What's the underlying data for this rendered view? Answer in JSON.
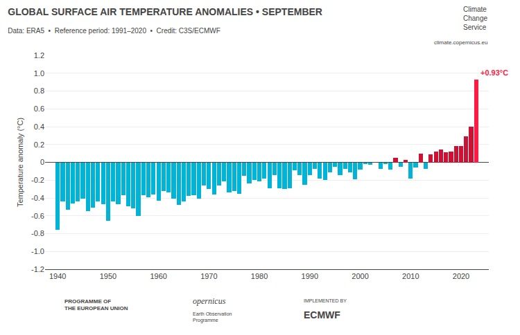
{
  "chart_data": {
    "type": "bar",
    "title": "GLOBAL SURFACE AIR TEMPERATURE ANOMALIES • SEPTEMBER",
    "subtitle": "Data: ERA5  •  Reference period: 1991–2020  •  Credit: C3S/ECMWF",
    "ylabel": "Temperature anomaly (°C)",
    "x": [
      1940,
      1941,
      1942,
      1943,
      1944,
      1945,
      1946,
      1947,
      1948,
      1949,
      1950,
      1951,
      1952,
      1953,
      1954,
      1955,
      1956,
      1957,
      1958,
      1959,
      1960,
      1961,
      1962,
      1963,
      1964,
      1965,
      1966,
      1967,
      1968,
      1969,
      1970,
      1971,
      1972,
      1973,
      1974,
      1975,
      1976,
      1977,
      1978,
      1979,
      1980,
      1981,
      1982,
      1983,
      1984,
      1985,
      1986,
      1987,
      1988,
      1989,
      1990,
      1991,
      1992,
      1993,
      1994,
      1995,
      1996,
      1997,
      1998,
      1999,
      2000,
      2001,
      2002,
      2003,
      2004,
      2005,
      2006,
      2007,
      2008,
      2009,
      2010,
      2011,
      2012,
      2013,
      2014,
      2015,
      2016,
      2017,
      2018,
      2019,
      2020,
      2021,
      2022,
      2023
    ],
    "values": [
      -0.76,
      -0.44,
      -0.53,
      -0.46,
      -0.44,
      -0.41,
      -0.55,
      -0.51,
      -0.44,
      -0.47,
      -0.66,
      -0.44,
      -0.47,
      -0.37,
      -0.49,
      -0.52,
      -0.6,
      -0.37,
      -0.39,
      -0.36,
      -0.43,
      -0.32,
      -0.34,
      -0.41,
      -0.48,
      -0.44,
      -0.38,
      -0.37,
      -0.41,
      -0.26,
      -0.3,
      -0.36,
      -0.26,
      -0.21,
      -0.34,
      -0.32,
      -0.35,
      -0.15,
      -0.24,
      -0.2,
      -0.21,
      -0.18,
      -0.29,
      -0.14,
      -0.29,
      -0.3,
      -0.29,
      -0.09,
      -0.14,
      -0.25,
      -0.14,
      -0.07,
      -0.18,
      -0.2,
      -0.11,
      -0.05,
      -0.14,
      -0.07,
      -0.11,
      -0.19,
      -0.08,
      -0.02,
      -0.03,
      0.0,
      -0.07,
      -0.02,
      -0.08,
      0.05,
      -0.05,
      0.03,
      -0.18,
      -0.06,
      0.1,
      -0.07,
      0.09,
      0.12,
      0.14,
      0.11,
      0.12,
      0.18,
      0.18,
      0.29,
      0.4,
      0.93
    ],
    "colors": [
      "#00b4d8",
      "#00b4d8",
      "#00b4d8",
      "#00b4d8",
      "#00b4d8",
      "#00b4d8",
      "#00b4d8",
      "#00b4d8",
      "#00b4d8",
      "#00b4d8",
      "#00b4d8",
      "#00b4d8",
      "#00b4d8",
      "#00b4d8",
      "#00b4d8",
      "#00b4d8",
      "#00b4d8",
      "#00b4d8",
      "#00b4d8",
      "#00b4d8",
      "#00b4d8",
      "#00b4d8",
      "#00b4d8",
      "#00b4d8",
      "#00b4d8",
      "#00b4d8",
      "#00b4d8",
      "#00b4d8",
      "#00b4d8",
      "#00b4d8",
      "#00b4d8",
      "#00b4d8",
      "#00b4d8",
      "#00b4d8",
      "#00b4d8",
      "#00b4d8",
      "#00b4d8",
      "#00b4d8",
      "#00b4d8",
      "#00b4d8",
      "#00b4d8",
      "#00b4d8",
      "#00b4d8",
      "#00b4d8",
      "#00b4d8",
      "#00b4d8",
      "#00b4d8",
      "#00b4d8",
      "#00b4d8",
      "#00b4d8",
      "#00b4d8",
      "#00b4d8",
      "#00b4d8",
      "#00b4d8",
      "#00b4d8",
      "#00b4d8",
      "#00b4d8",
      "#00b4d8",
      "#00b4d8",
      "#00b4d8",
      "#00b4d8",
      "#00b4d8",
      "#00b4d8",
      "#cc1133",
      "#00b4d8",
      "#00b4d8",
      "#00b4d8",
      "#cc1133",
      "#00b4d8",
      "#cc1133",
      "#00b4d8",
      "#00b4d8",
      "#cc1133",
      "#00b4d8",
      "#cc1133",
      "#cc1133",
      "#cc1133",
      "#cc1133",
      "#cc1133",
      "#cc1133",
      "#cc1133",
      "#cc1133",
      "#cc1133",
      "#ff1a44"
    ],
    "xlim": [
      1937.5,
      2025.5
    ],
    "xticks": [
      1940,
      1950,
      1960,
      1970,
      1980,
      1990,
      2000,
      2010,
      2020
    ],
    "ylim": [
      -1.2,
      1.2
    ],
    "yticks": [
      -1.2,
      {
        "value": -1.0,
        "label": "-1.0"
      },
      -0.8,
      -0.6,
      -0.4,
      -0.2,
      0,
      0.2,
      0.4,
      0.6,
      0.8,
      {
        "value": 1.0,
        "label": "1.0"
      },
      1.2
    ],
    "grid": true,
    "annotations": [
      {
        "text": "+0.93°C",
        "x": 2023,
        "y": 0.93,
        "color": "#ff1a44"
      },
      {
        "text": "Climate\nChange\nService"
      },
      {
        "text": "climate.copernicus.eu"
      },
      {
        "text": "PROGRAMME OF\nTHE EUROPEAN UNION"
      },
      {
        "text": "opernicus"
      },
      {
        "text": "Earth Observation\nProgramme"
      },
      {
        "text": "IMPLEMENTED BY"
      },
      {
        "text": "ECMWF"
      }
    ]
  }
}
